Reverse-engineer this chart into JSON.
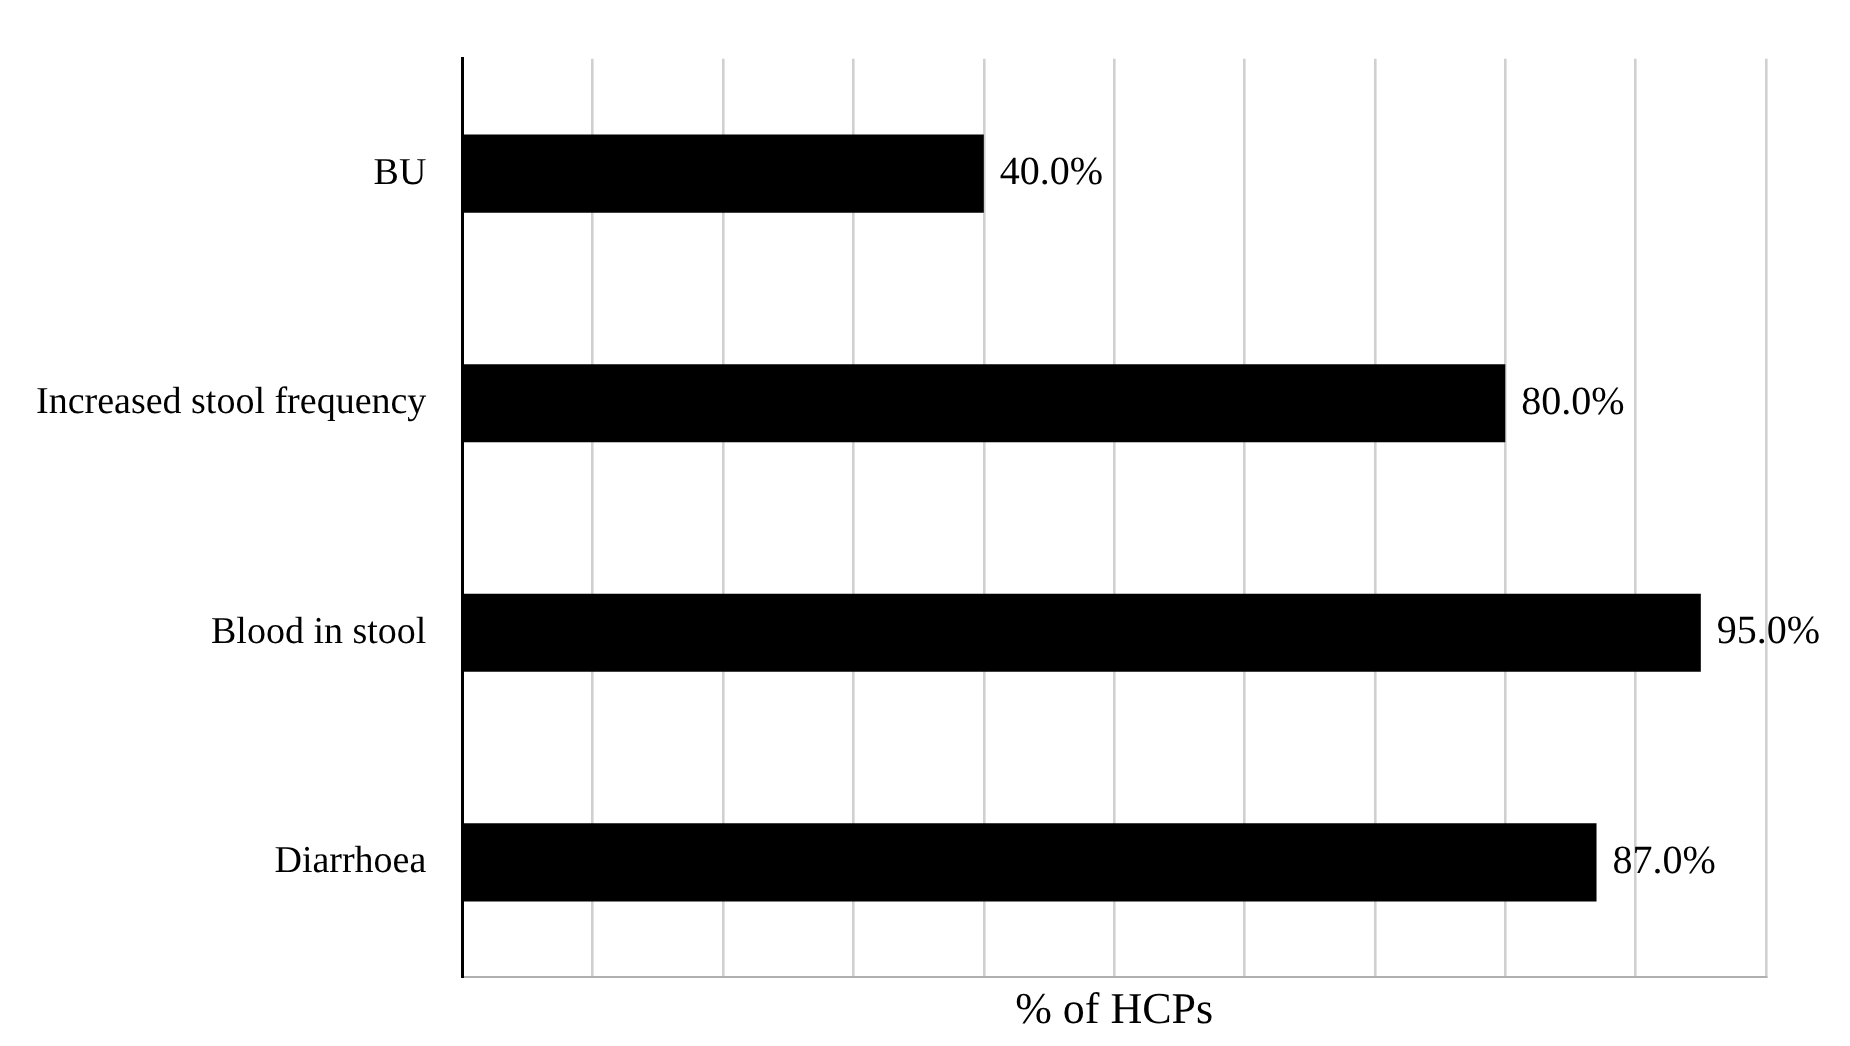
{
  "chart_data": {
    "type": "bar",
    "orientation": "horizontal",
    "xlabel": "% of HCPs",
    "categories": [
      "BU",
      "Increased stool frequency",
      "Blood in stool",
      "Diarrhoea"
    ],
    "values": [
      40,
      80,
      95,
      87
    ],
    "color": "#000000",
    "value_labels": [
      "40.0%",
      "80.0%",
      "95.0%",
      "87.0%"
    ],
    "xlim": [
      0,
      100
    ],
    "xticks": [
      {
        "value": 0,
        "label": null
      },
      {
        "value": 10,
        "label": null
      },
      {
        "value": 20,
        "label": null
      },
      {
        "value": 30,
        "label": null
      },
      {
        "value": 40,
        "label": null
      },
      {
        "value": 50,
        "label": null
      },
      {
        "value": 60,
        "label": null
      },
      {
        "value": 70,
        "label": null
      },
      {
        "value": 80,
        "label": null
      },
      {
        "value": 90,
        "label": null
      },
      {
        "value": 100,
        "label": null
      }
    ],
    "grid": "x",
    "tick_labels": "y",
    "legend": false
  }
}
